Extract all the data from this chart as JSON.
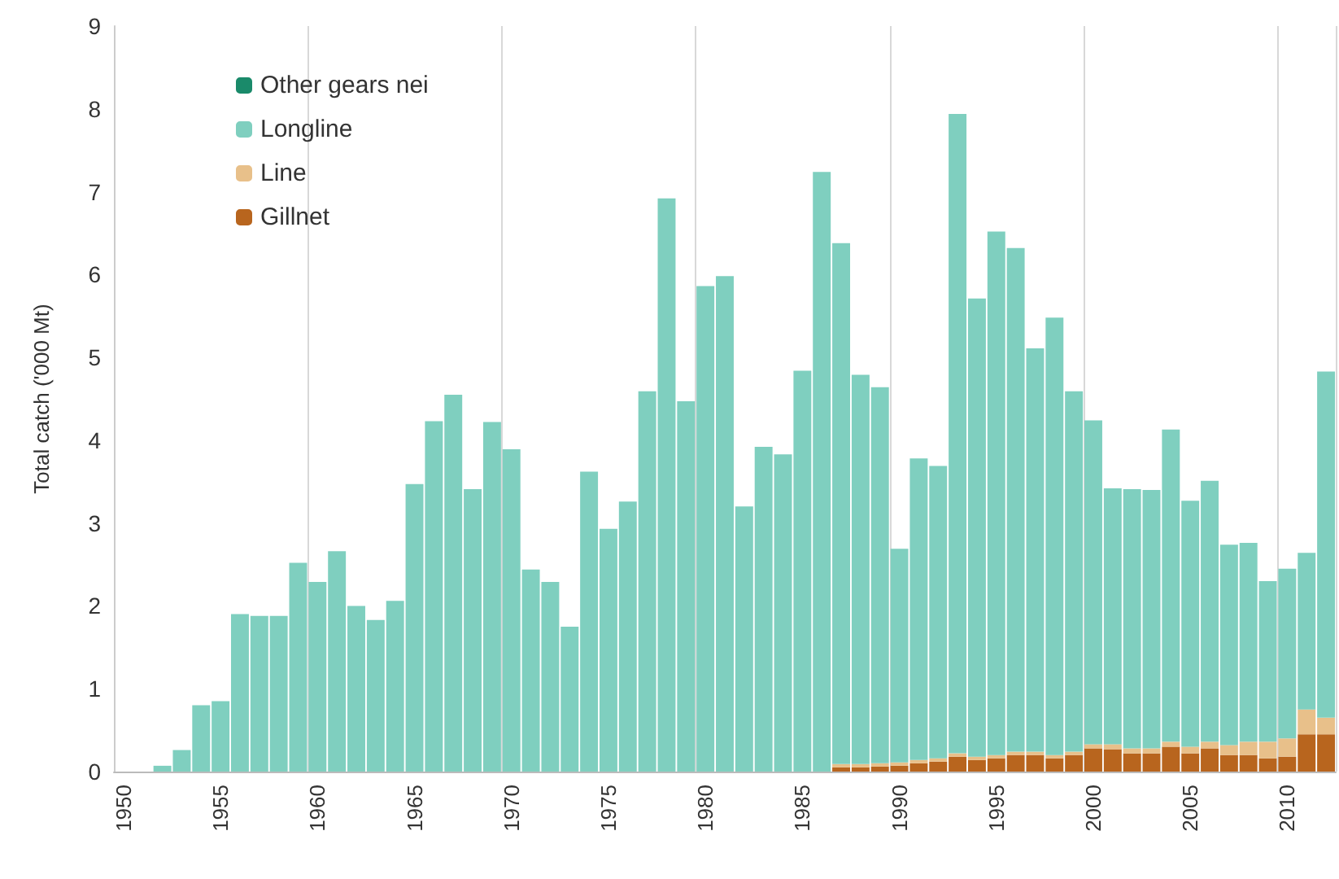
{
  "chart_data": {
    "type": "bar",
    "stacked": true,
    "ylabel": "Total catch ('000 Mt)",
    "categories": [
      "1950",
      null,
      null,
      null,
      null,
      "1955",
      null,
      null,
      null,
      null,
      "1960",
      null,
      null,
      null,
      null,
      "1965",
      null,
      null,
      null,
      null,
      "1970",
      null,
      null,
      null,
      null,
      "1975",
      null,
      null,
      null,
      null,
      "1980",
      null,
      null,
      null,
      null,
      "1985",
      null,
      null,
      null,
      null,
      "1990",
      null,
      null,
      null,
      null,
      "1995",
      null,
      null,
      null,
      null,
      "2000",
      null,
      null,
      null,
      null,
      "2005",
      null,
      null,
      null,
      null,
      "2010",
      null,
      null
    ],
    "series": [
      {
        "name": "Gillnet",
        "color": "#b8651e",
        "values": [
          0,
          0,
          0,
          0,
          0,
          0,
          0,
          0,
          0,
          0,
          0,
          0,
          0,
          0,
          0,
          0,
          0,
          0,
          0,
          0,
          0,
          0,
          0,
          0,
          0,
          0,
          0,
          0,
          0,
          0,
          0,
          0,
          0,
          0,
          0,
          0,
          0,
          0.05,
          0.05,
          0.06,
          0.07,
          0.1,
          0.12,
          0.18,
          0.14,
          0.16,
          0.2,
          0.2,
          0.16,
          0.2,
          0.28,
          0.27,
          0.22,
          0.22,
          0.3,
          0.22,
          0.28,
          0.2,
          0.2,
          0.16,
          0.18,
          0.45,
          0.45
        ]
      },
      {
        "name": "Line",
        "color": "#e8c08a",
        "values": [
          0,
          0,
          0,
          0,
          0,
          0,
          0,
          0,
          0,
          0,
          0,
          0,
          0,
          0,
          0,
          0,
          0,
          0,
          0,
          0,
          0,
          0,
          0,
          0,
          0,
          0,
          0,
          0,
          0,
          0,
          0,
          0,
          0,
          0,
          0,
          0,
          0,
          0.04,
          0.04,
          0.04,
          0.04,
          0.04,
          0.04,
          0.04,
          0.04,
          0.04,
          0.04,
          0.04,
          0.04,
          0.04,
          0.05,
          0.06,
          0.06,
          0.06,
          0.06,
          0.08,
          0.08,
          0.12,
          0.16,
          0.2,
          0.22,
          0.3,
          0.2
        ]
      },
      {
        "name": "Longline",
        "color": "#7fcfbf",
        "values": [
          0,
          0,
          0.07,
          0.26,
          0.8,
          0.85,
          1.9,
          1.88,
          1.88,
          2.52,
          2.29,
          2.66,
          2.0,
          1.83,
          2.06,
          3.47,
          4.23,
          4.55,
          3.41,
          4.22,
          3.89,
          2.44,
          2.29,
          1.75,
          3.62,
          2.93,
          3.26,
          4.59,
          6.92,
          4.47,
          5.86,
          5.98,
          3.2,
          3.92,
          3.83,
          4.84,
          7.24,
          6.29,
          4.7,
          4.54,
          2.58,
          3.64,
          3.53,
          7.72,
          5.53,
          6.32,
          6.08,
          4.87,
          5.28,
          4.35,
          3.91,
          3.09,
          3.13,
          3.12,
          3.77,
          2.97,
          3.15,
          2.42,
          2.4,
          1.94,
          2.05,
          1.89,
          4.18
        ]
      },
      {
        "name": "Other gears nei",
        "color": "#1a8a6a",
        "values": [
          0,
          0,
          0,
          0,
          0,
          0,
          0,
          0,
          0,
          0,
          0,
          0,
          0,
          0,
          0,
          0,
          0,
          0,
          0,
          0,
          0,
          0,
          0,
          0,
          0,
          0,
          0,
          0,
          0,
          0,
          0,
          0,
          0,
          0,
          0,
          0,
          0,
          0,
          0,
          0,
          0,
          0,
          0,
          0,
          0,
          0,
          0,
          0,
          0,
          0,
          0,
          0,
          0,
          0,
          0,
          0,
          0,
          0,
          0,
          0,
          0,
          0,
          0
        ]
      }
    ],
    "ylim": [
      0,
      9
    ],
    "yticks": [
      0,
      1,
      2,
      3,
      4,
      5,
      6,
      7,
      8,
      9
    ],
    "grid": "x",
    "legend": "top left"
  }
}
